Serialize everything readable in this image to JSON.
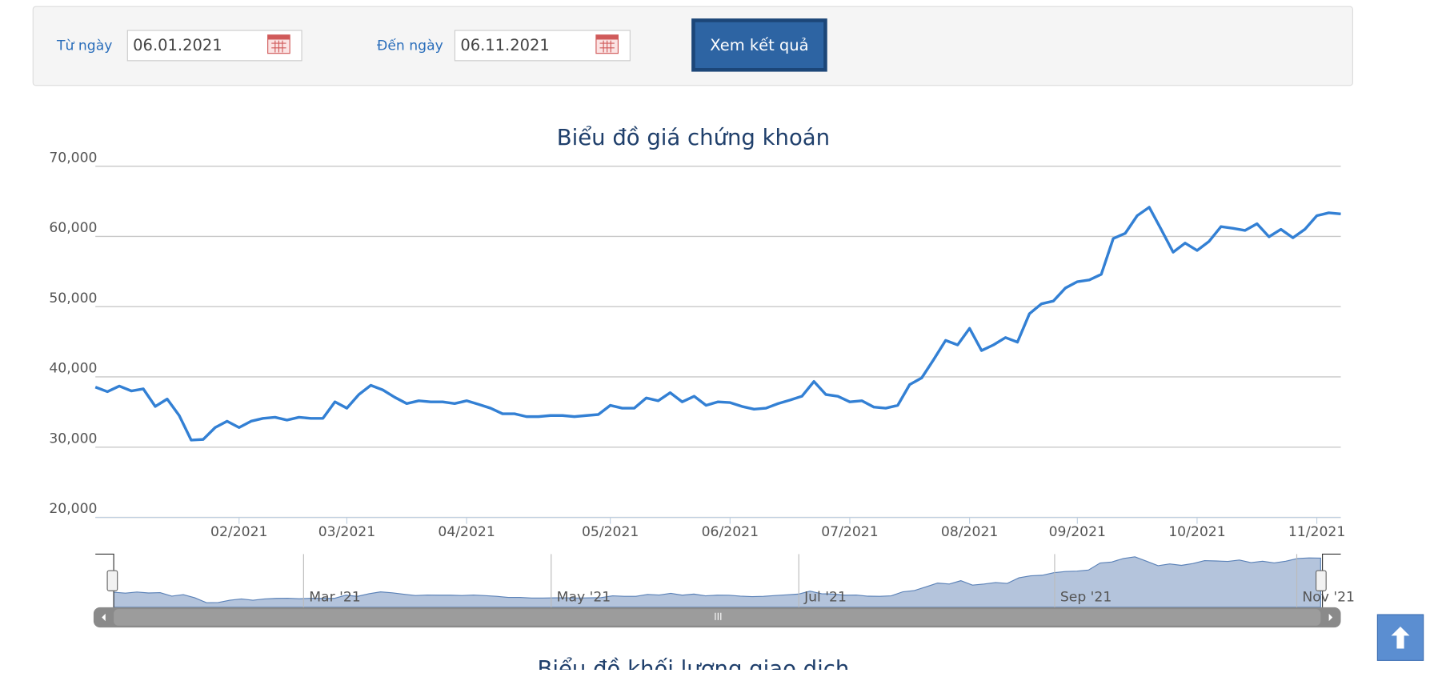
{
  "form": {
    "from_label": "Từ ngày",
    "from_value": "06.01.2021",
    "to_label": "Đến ngày",
    "to_value": "06.11.2021",
    "button": "Xem kết quả"
  },
  "chart_data": {
    "type": "line",
    "title": "Biểu đồ giá chứng khoán",
    "categories": [
      null,
      null,
      null,
      null,
      null,
      null,
      null,
      null,
      null,
      null,
      null,
      null,
      "02/2021",
      null,
      null,
      null,
      null,
      null,
      null,
      null,
      null,
      "03/2021",
      null,
      null,
      null,
      null,
      null,
      null,
      null,
      null,
      null,
      "04/2021",
      null,
      null,
      null,
      null,
      null,
      null,
      null,
      null,
      null,
      null,
      null,
      "05/2021",
      null,
      null,
      null,
      null,
      null,
      null,
      null,
      null,
      null,
      "06/2021",
      null,
      null,
      null,
      null,
      null,
      null,
      null,
      null,
      null,
      "07/2021",
      null,
      null,
      null,
      null,
      null,
      null,
      null,
      null,
      null,
      "08/2021",
      null,
      null,
      null,
      null,
      null,
      null,
      null,
      null,
      "09/2021",
      null,
      null,
      null,
      null,
      null,
      null,
      null,
      null,
      null,
      "10/2021",
      null,
      null,
      null,
      null,
      null,
      null,
      null,
      null,
      null,
      "11/2021",
      null,
      null
    ],
    "series": [
      {
        "name": null,
        "color": "#3380d4",
        "values": [
          38550,
          37900,
          38700,
          38000,
          38300,
          35800,
          36850,
          34500,
          31000,
          31100,
          32800,
          33700,
          32800,
          33700,
          34100,
          34250,
          33850,
          34250,
          34100,
          34100,
          36450,
          35550,
          37500,
          38800,
          38150,
          37100,
          36200,
          36600,
          36450,
          36450,
          36200,
          36600,
          36100,
          35550,
          34750,
          34750,
          34350,
          34350,
          34500,
          34500,
          34350,
          34500,
          34650,
          35950,
          35550,
          35550,
          37000,
          36600,
          37750,
          36450,
          37250,
          35950,
          36450,
          36350,
          35800,
          35400,
          35550,
          36200,
          36700,
          37250,
          39350,
          37500,
          37250,
          36450,
          36600,
          35700,
          35550,
          35950,
          38900,
          39850,
          42450,
          45200,
          44550,
          46900,
          43750,
          44550,
          45600,
          44950,
          49000,
          50400,
          50800,
          52650,
          53550,
          53800,
          54600,
          59700,
          60450,
          62950,
          64150,
          61000,
          57750,
          59050,
          58000,
          59300,
          61400,
          61150,
          60850,
          61800,
          59950,
          61000,
          59800,
          61000,
          62950,
          63350,
          63200
        ]
      }
    ],
    "ylim": [
      20000,
      70000
    ],
    "yticks": [
      {
        "value": 20000,
        "label": "20,000"
      },
      {
        "value": 30000,
        "label": "30,000"
      },
      {
        "value": 40000,
        "label": "40,000"
      },
      {
        "value": 50000,
        "label": "50,000"
      },
      {
        "value": 60000,
        "label": "60,000"
      },
      {
        "value": 70000,
        "label": "70,000"
      }
    ],
    "grid": true,
    "navigator_labels": [
      "Mar '21",
      "May '21",
      "Jul '21",
      "Sep '21",
      "Nov '21"
    ]
  },
  "next_title": "Biểu đồ khối lượng giao dịch"
}
